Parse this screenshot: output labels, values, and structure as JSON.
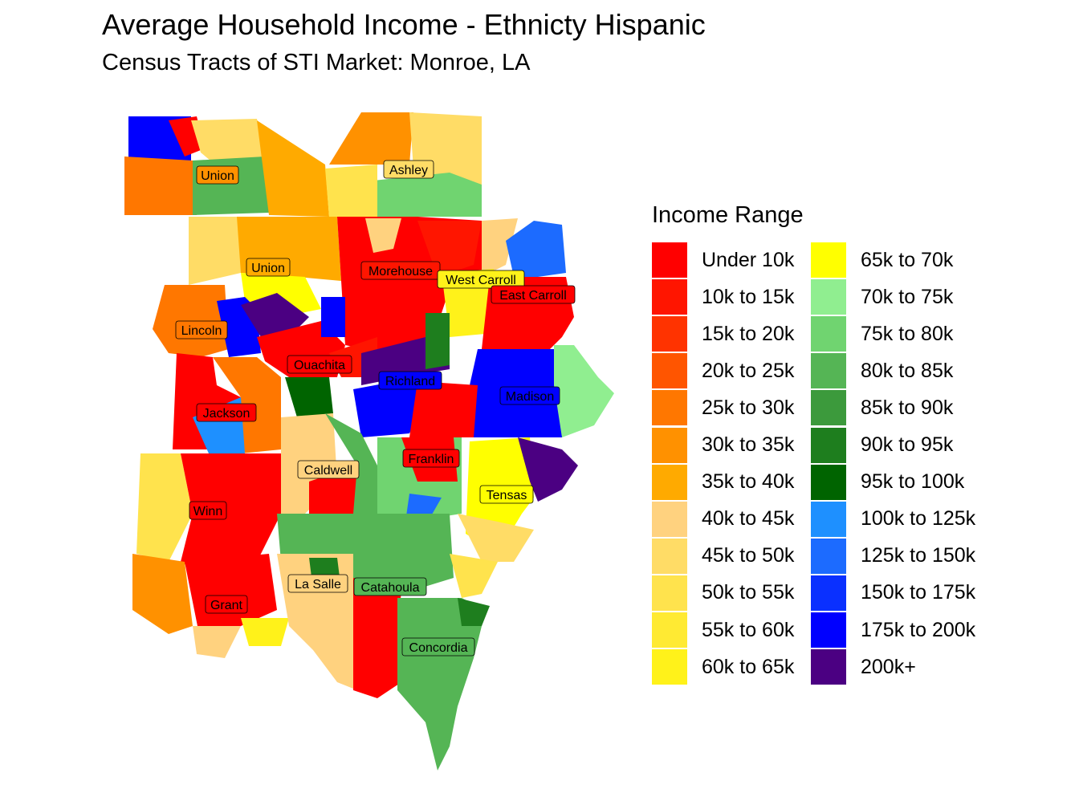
{
  "title": "Average Household Income - Ethnicty Hispanic",
  "subtitle": "Census Tracts of STI Market: Monroe, LA",
  "legend": {
    "title": "Income Range",
    "items": [
      {
        "label": "Under 10k",
        "color": "#FF0000"
      },
      {
        "label": "10k to 15k",
        "color": "#FF1500"
      },
      {
        "label": "15k to 20k",
        "color": "#FF3300"
      },
      {
        "label": "20k to 25k",
        "color": "#FF5500"
      },
      {
        "label": "25k to 30k",
        "color": "#FF7700"
      },
      {
        "label": "30k to 35k",
        "color": "#FF9100"
      },
      {
        "label": "35k to 40k",
        "color": "#FFAA00"
      },
      {
        "label": "40k to 45k",
        "color": "#FFD27F"
      },
      {
        "label": "45k to 50k",
        "color": "#FFDC66"
      },
      {
        "label": "50k to 55k",
        "color": "#FFE34D"
      },
      {
        "label": "55k to 60k",
        "color": "#FFEA33"
      },
      {
        "label": "60k to 65k",
        "color": "#FFF21A"
      },
      {
        "label": "65k to 70k",
        "color": "#FFFF00"
      },
      {
        "label": "70k to 75k",
        "color": "#90EE90"
      },
      {
        "label": "75k to 80k",
        "color": "#70D470"
      },
      {
        "label": "80k to 85k",
        "color": "#55B555"
      },
      {
        "label": "85k to 90k",
        "color": "#3C9A3C"
      },
      {
        "label": "90k to 95k",
        "color": "#1E7E1E"
      },
      {
        "label": "95k to 100k",
        "color": "#006400"
      },
      {
        "label": "100k to 125k",
        "color": "#1E90FF"
      },
      {
        "label": "125k to 150k",
        "color": "#1C6BFF"
      },
      {
        "label": "150k to 175k",
        "color": "#0A30FF"
      },
      {
        "label": "175k to 200k",
        "color": "#0000FF"
      },
      {
        "label": "200k+",
        "color": "#4B0082"
      }
    ]
  },
  "parishes": [
    {
      "name": "Union",
      "color": "#FF9100"
    },
    {
      "name": "Ashley",
      "color": "#FFDC66"
    },
    {
      "name": "Union",
      "color": "#FFAA00"
    },
    {
      "name": "Morehouse",
      "color": "#FF1500"
    },
    {
      "name": "West Carroll",
      "color": "#FFF21A"
    },
    {
      "name": "East Carroll",
      "color": "#FF0000"
    },
    {
      "name": "Lincoln",
      "color": "#FF7700"
    },
    {
      "name": "Ouachita",
      "color": "#FF0000"
    },
    {
      "name": "Richland",
      "color": "#0000FF"
    },
    {
      "name": "Madison",
      "color": "#0000FF"
    },
    {
      "name": "Jackson",
      "color": "#FF0000"
    },
    {
      "name": "Caldwell",
      "color": "#FFD27F"
    },
    {
      "name": "Franklin",
      "color": "#FF0000"
    },
    {
      "name": "Tensas",
      "color": "#FFFF00"
    },
    {
      "name": "Winn",
      "color": "#FF0000"
    },
    {
      "name": "La Salle",
      "color": "#FFD27F"
    },
    {
      "name": "Catahoula",
      "color": "#55B555"
    },
    {
      "name": "Grant",
      "color": "#FF0000"
    },
    {
      "name": "Concordia",
      "color": "#55B555"
    }
  ]
}
